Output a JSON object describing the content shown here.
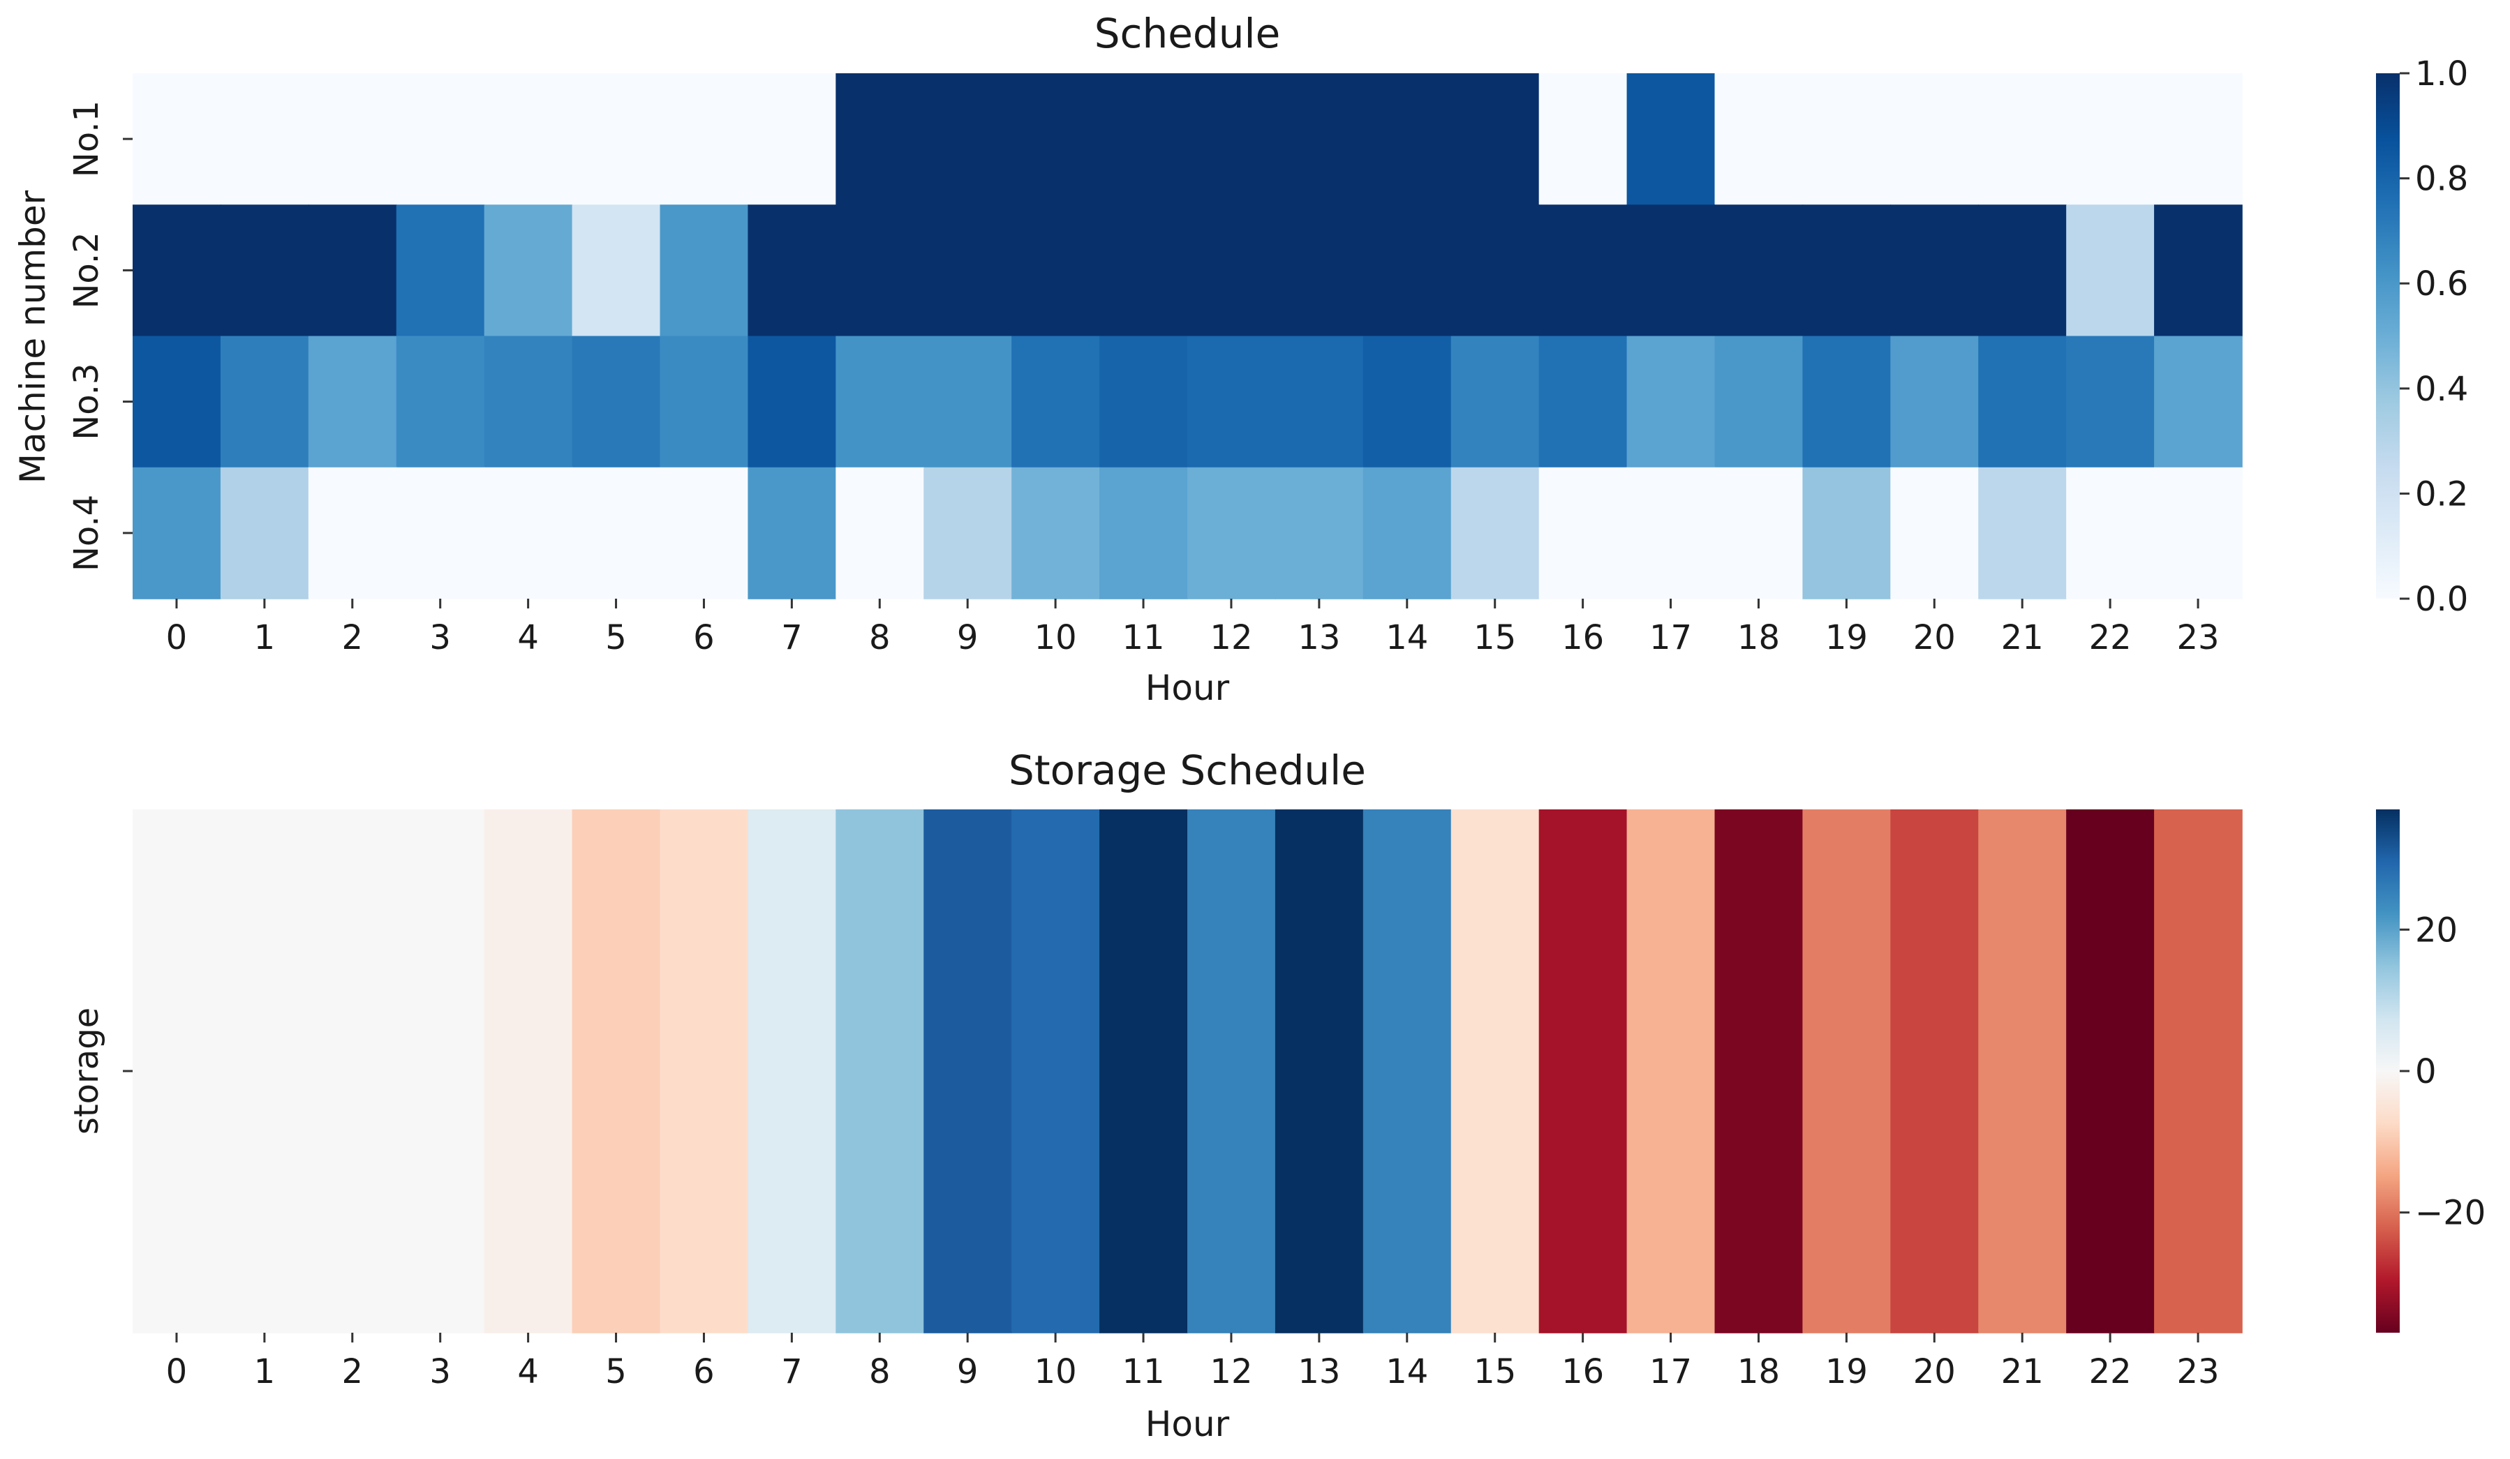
{
  "chart_data": [
    {
      "type": "heatmap",
      "title": "Schedule",
      "xlabel": "Hour",
      "ylabel": "Machine number",
      "colormap": "Blues",
      "x": [
        "0",
        "1",
        "2",
        "3",
        "4",
        "5",
        "6",
        "7",
        "8",
        "9",
        "10",
        "11",
        "12",
        "13",
        "14",
        "15",
        "16",
        "17",
        "18",
        "19",
        "20",
        "21",
        "22",
        "23"
      ],
      "y": [
        "No.1",
        "No.2",
        "No.3",
        "No.4"
      ],
      "values": [
        [
          0,
          0,
          0,
          0,
          0,
          0,
          0,
          0,
          1,
          1,
          1,
          1,
          1,
          1,
          1,
          1,
          0,
          0.85,
          0,
          0,
          0,
          0,
          0,
          0
        ],
        [
          1,
          1,
          1,
          0.75,
          0.52,
          0.18,
          0.6,
          1,
          1,
          1,
          1,
          1,
          1,
          1,
          1,
          1,
          1,
          1,
          1,
          1,
          1,
          1,
          0.28,
          1
        ],
        [
          0.85,
          0.7,
          0.55,
          0.65,
          0.68,
          0.72,
          0.65,
          0.85,
          0.62,
          0.62,
          0.75,
          0.8,
          0.78,
          0.78,
          0.82,
          0.68,
          0.75,
          0.55,
          0.6,
          0.75,
          0.58,
          0.75,
          0.72,
          0.55
        ],
        [
          0.6,
          0.32,
          0,
          0,
          0,
          0,
          0,
          0.6,
          0,
          0.3,
          0.48,
          0.55,
          0.5,
          0.5,
          0.55,
          0.28,
          0,
          0,
          0,
          0.4,
          0,
          0.28,
          0,
          0
        ]
      ],
      "zlim": [
        0,
        1
      ],
      "colorbar_ticks": [
        "0.0",
        "0.2",
        "0.4",
        "0.6",
        "0.8",
        "1.0"
      ],
      "colorbar_tick_values": [
        0,
        0.2,
        0.4,
        0.6,
        0.8,
        1.0
      ]
    },
    {
      "type": "heatmap",
      "title": "Storage Schedule",
      "xlabel": "Hour",
      "ylabel": "",
      "colormap": "RdBu",
      "x": [
        "0",
        "1",
        "2",
        "3",
        "4",
        "5",
        "6",
        "7",
        "8",
        "9",
        "10",
        "11",
        "12",
        "13",
        "14",
        "15",
        "16",
        "17",
        "18",
        "19",
        "20",
        "21",
        "22",
        "23"
      ],
      "y": [
        "storage"
      ],
      "values": [
        [
          0,
          0,
          0,
          0,
          -2,
          -9,
          -7,
          5,
          15,
          31,
          29,
          37,
          25,
          37,
          25,
          -6,
          -31,
          -13,
          -35,
          -19,
          -25,
          -18,
          -37,
          -22
        ]
      ],
      "zlim": [
        -37,
        37
      ],
      "colorbar_ticks": [
        "−20",
        "0",
        "20"
      ],
      "colorbar_tick_values": [
        -20,
        0,
        20
      ]
    }
  ]
}
